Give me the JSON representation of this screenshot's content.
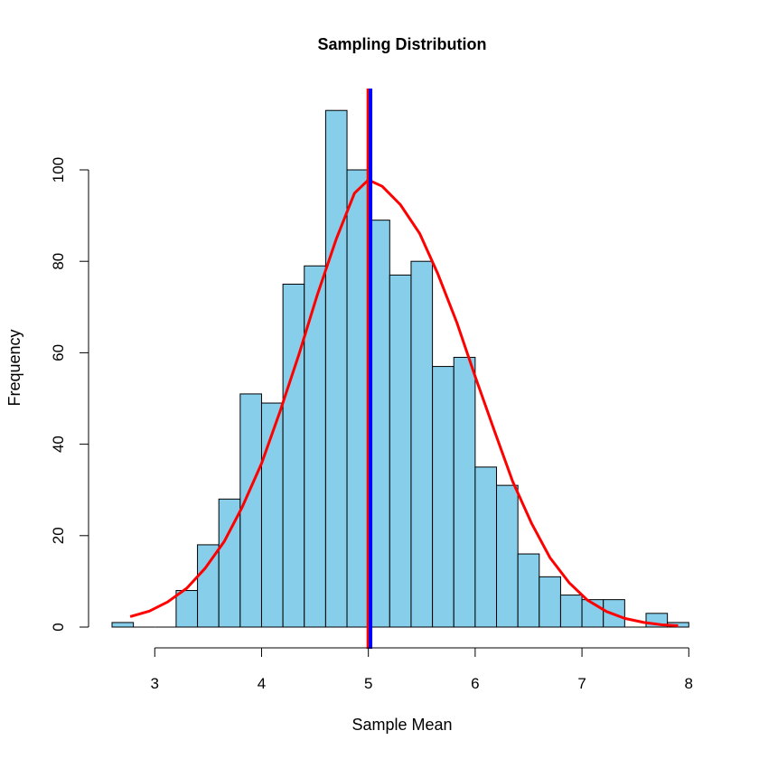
{
  "chart_data": {
    "type": "bar",
    "title": "Sampling Distribution",
    "xlabel": "Sample Mean",
    "ylabel": "Frequency",
    "xlim": [
      2.6,
      8.0
    ],
    "ylim": [
      0,
      114
    ],
    "x_ticks": [
      3,
      4,
      5,
      6,
      7,
      8
    ],
    "y_ticks": [
      0,
      20,
      40,
      60,
      80,
      100
    ],
    "bin_edges": [
      2.6,
      2.8,
      3.0,
      3.2,
      3.4,
      3.6,
      3.8,
      4.0,
      4.2,
      4.4,
      4.6,
      4.8,
      5.0,
      5.2,
      5.4,
      5.6,
      5.8,
      6.0,
      6.2,
      6.4,
      6.6,
      6.8,
      7.0,
      7.2,
      7.4,
      7.6,
      7.8,
      8.0
    ],
    "values": [
      1,
      0,
      0,
      8,
      18,
      28,
      51,
      49,
      75,
      79,
      113,
      100,
      89,
      77,
      80,
      57,
      59,
      35,
      31,
      16,
      11,
      7,
      6,
      6,
      0,
      3,
      1
    ],
    "bar_color": "#87ceeb",
    "bar_edge_color": "#000000",
    "curve": {
      "color": "#ff0000",
      "x": [
        2.77,
        2.95,
        3.12,
        3.3,
        3.47,
        3.65,
        3.82,
        4.0,
        4.17,
        4.35,
        4.52,
        4.7,
        4.87,
        5.0,
        5.13,
        5.3,
        5.48,
        5.65,
        5.83,
        6.0,
        6.18,
        6.35,
        6.53,
        6.7,
        6.88,
        7.05,
        7.23,
        7.4,
        7.58,
        7.75,
        7.9
      ],
      "y": [
        2.3,
        3.5,
        5.5,
        8.5,
        12.8,
        18.7,
        26.3,
        35.8,
        47.0,
        59.6,
        72.5,
        84.9,
        94.9,
        97.8,
        96.4,
        92.4,
        86.1,
        77.3,
        66.5,
        54.8,
        42.9,
        31.9,
        22.6,
        15.2,
        9.7,
        5.9,
        3.4,
        1.9,
        1.0,
        0.5,
        0.3
      ]
    },
    "vlines": [
      {
        "x": 5.0,
        "color": "#ff0000"
      },
      {
        "x": 5.02,
        "color": "#0000ff"
      }
    ],
    "grid": false
  }
}
